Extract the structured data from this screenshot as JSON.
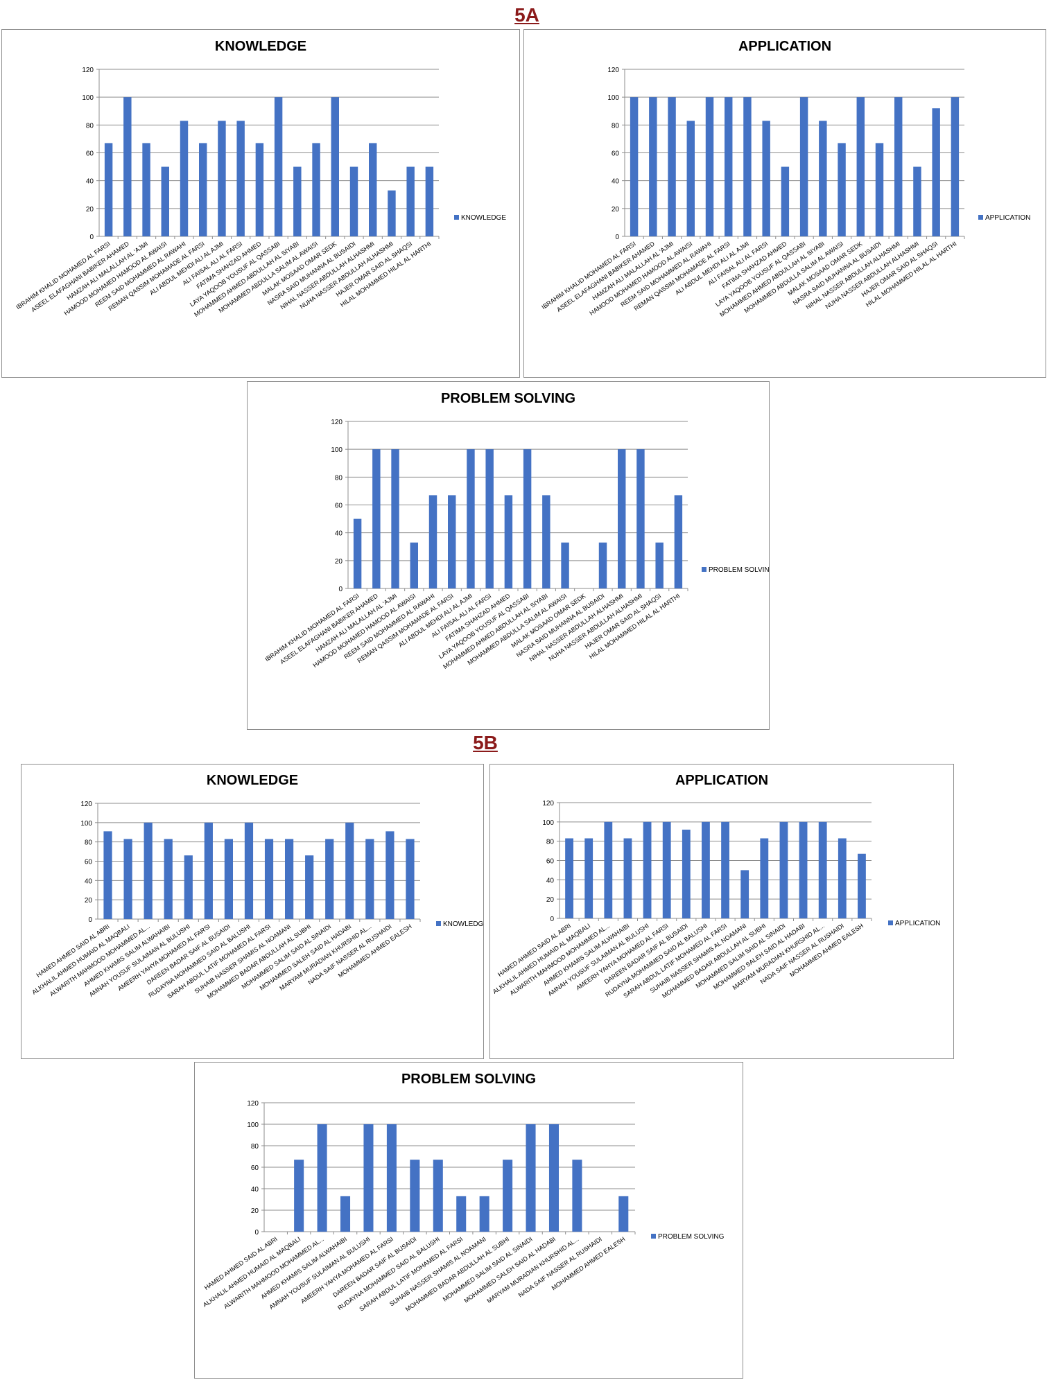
{
  "sections": [
    {
      "label": "5A"
    },
    {
      "label": "5B"
    }
  ],
  "students_5a": [
    "IBRAHIM KHALID MOHAMED AL FARSI",
    "ASEEL ELAFAGHANI BABIKER AHAMED",
    "HAMZAH ALI MALALLAH AL 'AJMI",
    "HAMOOD MOHAMED HAMOOD AL AWAISI",
    "REEM SAID MOHAMMED AL RAWAHI",
    "REMAN QASSIM MOHAMADE AL FARSI",
    "ALI ABDUL MEHDI ALI AL AJMI",
    "ALI FAISAL ALI AL FARSI",
    "FATIMA SHAHZAD AHMED",
    "LAYA YAQOOB YOUSUF AL QASSABI",
    "MOHAMMED AHMED ABDULLAH AL SIYABI",
    "MOHAMMED ABDULLA SALIM AL AWAISI",
    "MALAK MOSAAD OMAR SEDK",
    "NASRA SAID MUHANNA AL BUSAIDI",
    "NIHAL NASSER ABDULLAH ALHASHMI",
    "NUHA NASSER ABDULLAH ALHASHMI",
    "HAJER OMAR SAID AL SHAQSI",
    "HILAL MOHAMMED HILAL AL HARTHI"
  ],
  "students_5b": [
    "HAMED AHMED SAID AL ABRI",
    "ALKHALIL AHMED HUMAID AL MAQBALI",
    "ALWARITH MAHMOOD MOHAMMED AL...",
    "AHMED KHAMIS SALIM ALWAHAIBI",
    "AMNAH YOUSUF SULAIMAN AL BULUSHI",
    "AMEERH YAHYA MOHAMED AL FARSI",
    "DAREEN BADAR SAIF AL BUSAIDI",
    "RUDAYNA MOHAMMED SAID AL BALUSHI",
    "SARAH ABDUL LATIF MOHAMED AL FARSI",
    "SUHAIB NASSER SHAMIS AL NOAMANI",
    "MOHAMMED BADAR ABDULLAH AL SUBHI",
    "MOHAMMED SALIM SAID AL SINAIDI",
    "MOHAMMED SALEH SAID AL HADABI",
    "MARYAM MURADIAN KHURSHID AL...",
    "NADA SAIF NASSER AL RUSHAIDI",
    "MOHAMMED AHMED EALESH"
  ],
  "chart_data": [
    {
      "id": "5a-knowledge",
      "type": "bar",
      "class": "5A",
      "students": "5a",
      "title": "KNOWLEDGE",
      "series": [
        {
          "name": "KNOWLEDGE",
          "color": "#4472c4",
          "values": [
            67,
            100,
            67,
            50,
            83,
            67,
            83,
            83,
            67,
            100,
            50,
            67,
            100,
            50,
            67,
            33,
            50,
            50
          ]
        }
      ],
      "ylim": [
        0,
        120
      ],
      "yticks": [
        "0",
        "20",
        "40",
        "60",
        "80",
        "100",
        "120"
      ],
      "grid": true,
      "legend": "right"
    },
    {
      "id": "5a-application",
      "type": "bar",
      "class": "5A",
      "students": "5a",
      "title": "APPLICATION",
      "series": [
        {
          "name": "APPLICATION",
          "color": "#4472c4",
          "values": [
            100,
            100,
            100,
            83,
            100,
            100,
            100,
            83,
            50,
            100,
            83,
            67,
            100,
            67,
            100,
            50,
            92,
            100
          ]
        }
      ],
      "ylim": [
        0,
        120
      ],
      "yticks": [
        "0",
        "20",
        "40",
        "60",
        "80",
        "100",
        "120"
      ],
      "grid": true,
      "legend": "right"
    },
    {
      "id": "5a-problem",
      "type": "bar",
      "class": "5A",
      "students": "5a",
      "title": "PROBLEM SOLVING",
      "series": [
        {
          "name": "PROBLEM SOLVING",
          "color": "#4472c4",
          "values": [
            50,
            100,
            100,
            33,
            67,
            67,
            100,
            100,
            67,
            100,
            67,
            33,
            0,
            33,
            100,
            100,
            33,
            67
          ]
        }
      ],
      "ylim": [
        0,
        120
      ],
      "yticks": [
        "0",
        "20",
        "40",
        "60",
        "80",
        "100",
        "120"
      ],
      "grid": true,
      "legend": "right"
    },
    {
      "id": "5b-knowledge",
      "type": "bar",
      "class": "5B",
      "students": "5b",
      "title": "KNOWLEDGE",
      "series": [
        {
          "name": "KNOWLEDGE",
          "color": "#4472c4",
          "values": [
            91,
            83,
            100,
            83,
            66,
            100,
            83,
            100,
            83,
            83,
            66,
            83,
            100,
            83,
            91,
            83
          ]
        }
      ],
      "ylim": [
        0,
        120
      ],
      "yticks": [
        "0",
        "20",
        "40",
        "60",
        "80",
        "100",
        "120"
      ],
      "grid": true,
      "legend": "right"
    },
    {
      "id": "5b-application",
      "type": "bar",
      "class": "5B",
      "students": "5b",
      "title": "APPLICATION",
      "series": [
        {
          "name": "APPLICATION",
          "color": "#4472c4",
          "values": [
            83,
            83,
            100,
            83,
            100,
            100,
            92,
            100,
            100,
            50,
            83,
            100,
            100,
            100,
            83,
            67
          ]
        }
      ],
      "ylim": [
        0,
        120
      ],
      "yticks": [
        "0",
        "20",
        "40",
        "60",
        "80",
        "100",
        "120"
      ],
      "grid": true,
      "legend": "right"
    },
    {
      "id": "5b-problem",
      "type": "bar",
      "class": "5B",
      "students": "5b",
      "title": "PROBLEM SOLVING",
      "series": [
        {
          "name": "PROBLEM SOLVING",
          "color": "#4472c4",
          "values": [
            0,
            67,
            100,
            33,
            100,
            100,
            67,
            67,
            33,
            33,
            67,
            100,
            100,
            67,
            0,
            33
          ]
        }
      ],
      "ylim": [
        0,
        120
      ],
      "yticks": [
        "0",
        "20",
        "40",
        "60",
        "80",
        "100",
        "120"
      ],
      "grid": true,
      "legend": "right"
    }
  ]
}
